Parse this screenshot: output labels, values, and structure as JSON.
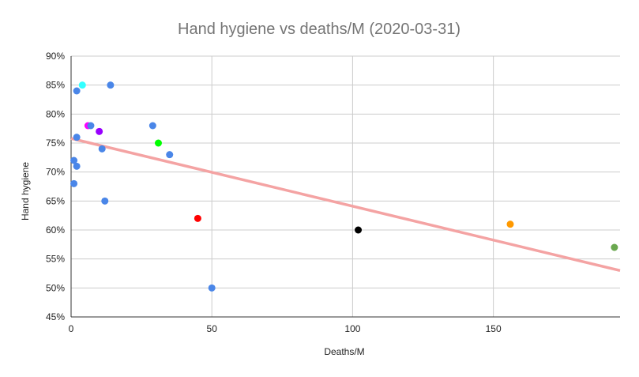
{
  "chart_data": {
    "type": "scatter",
    "title": "Hand hygiene vs deaths/M (2020-03-31)",
    "xlabel": "Deaths/M",
    "ylabel": "Hand hygiene",
    "xlim": [
      0,
      195
    ],
    "ylim": [
      45,
      90
    ],
    "x_ticks": [
      {
        "value": 0,
        "label": "0"
      },
      {
        "value": 50,
        "label": "50"
      },
      {
        "value": 100,
        "label": "100"
      },
      {
        "value": 150,
        "label": "150"
      }
    ],
    "y_ticks": [
      {
        "value": 45,
        "label": "45%"
      },
      {
        "value": 50,
        "label": "50%"
      },
      {
        "value": 55,
        "label": "55%"
      },
      {
        "value": 60,
        "label": "60%"
      },
      {
        "value": 65,
        "label": "65%"
      },
      {
        "value": 70,
        "label": "70%"
      },
      {
        "value": 75,
        "label": "75%"
      },
      {
        "value": 80,
        "label": "80%"
      },
      {
        "value": 85,
        "label": "85%"
      },
      {
        "value": 90,
        "label": "90%"
      }
    ],
    "grid": true,
    "legend": "none",
    "trendline": {
      "color": "#f4a3a3",
      "y_at_x0": 75.8,
      "y_at_xmax": 53.0
    },
    "points": [
      {
        "x": 4,
        "y": 85,
        "color": "#33ffff"
      },
      {
        "x": 14,
        "y": 85,
        "color": "#4a86e8"
      },
      {
        "x": 2,
        "y": 84,
        "color": "#4a86e8"
      },
      {
        "x": 6,
        "y": 78,
        "color": "#ff00ff"
      },
      {
        "x": 7,
        "y": 78,
        "color": "#4a86e8"
      },
      {
        "x": 29,
        "y": 78,
        "color": "#4a86e8"
      },
      {
        "x": 10,
        "y": 77,
        "color": "#9900ff"
      },
      {
        "x": 2,
        "y": 76,
        "color": "#4a86e8"
      },
      {
        "x": 31,
        "y": 75,
        "color": "#00ff00"
      },
      {
        "x": 11,
        "y": 74,
        "color": "#4a86e8"
      },
      {
        "x": 35,
        "y": 73,
        "color": "#4a86e8"
      },
      {
        "x": 1,
        "y": 72,
        "color": "#4a86e8"
      },
      {
        "x": 2,
        "y": 71,
        "color": "#4a86e8"
      },
      {
        "x": 1,
        "y": 68,
        "color": "#4a86e8"
      },
      {
        "x": 12,
        "y": 65,
        "color": "#4a86e8"
      },
      {
        "x": 45,
        "y": 62,
        "color": "#ff0000"
      },
      {
        "x": 102,
        "y": 60,
        "color": "#000000"
      },
      {
        "x": 156,
        "y": 61,
        "color": "#ff9900"
      },
      {
        "x": 193,
        "y": 57,
        "color": "#6aa84f"
      },
      {
        "x": 50,
        "y": 50,
        "color": "#4a86e8"
      }
    ]
  }
}
